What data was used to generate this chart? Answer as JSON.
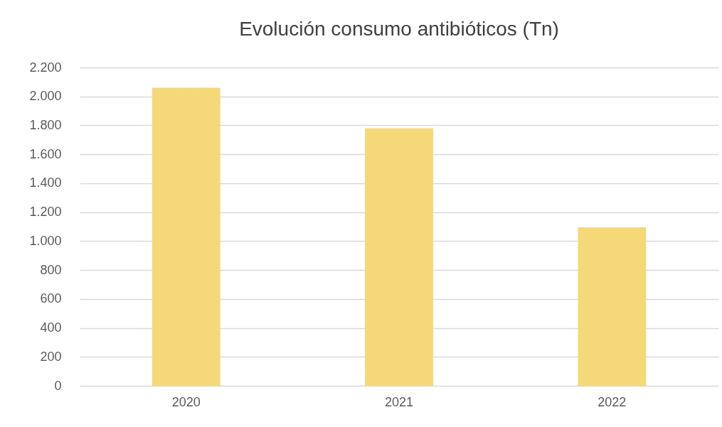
{
  "chart_data": {
    "type": "bar",
    "title": "Evolución consumo antibióticos (Tn)",
    "categories": [
      "2020",
      "2021",
      "2022"
    ],
    "values": [
      2060,
      1780,
      1095
    ],
    "color": "#f5d978",
    "ylim": [
      0,
      2200
    ],
    "yticks": [
      0,
      200,
      400,
      600,
      800,
      {
        "value": 1000,
        "label": "1.000"
      },
      {
        "value": 1200,
        "label": "1.200"
      },
      {
        "value": 1400,
        "label": "1.400"
      },
      {
        "value": 1600,
        "label": "1.600"
      },
      {
        "value": 1800,
        "label": "1.800"
      },
      {
        "value": 2000,
        "label": "2.000"
      },
      {
        "value": 2200,
        "label": "2.200"
      }
    ],
    "grid": "y"
  }
}
